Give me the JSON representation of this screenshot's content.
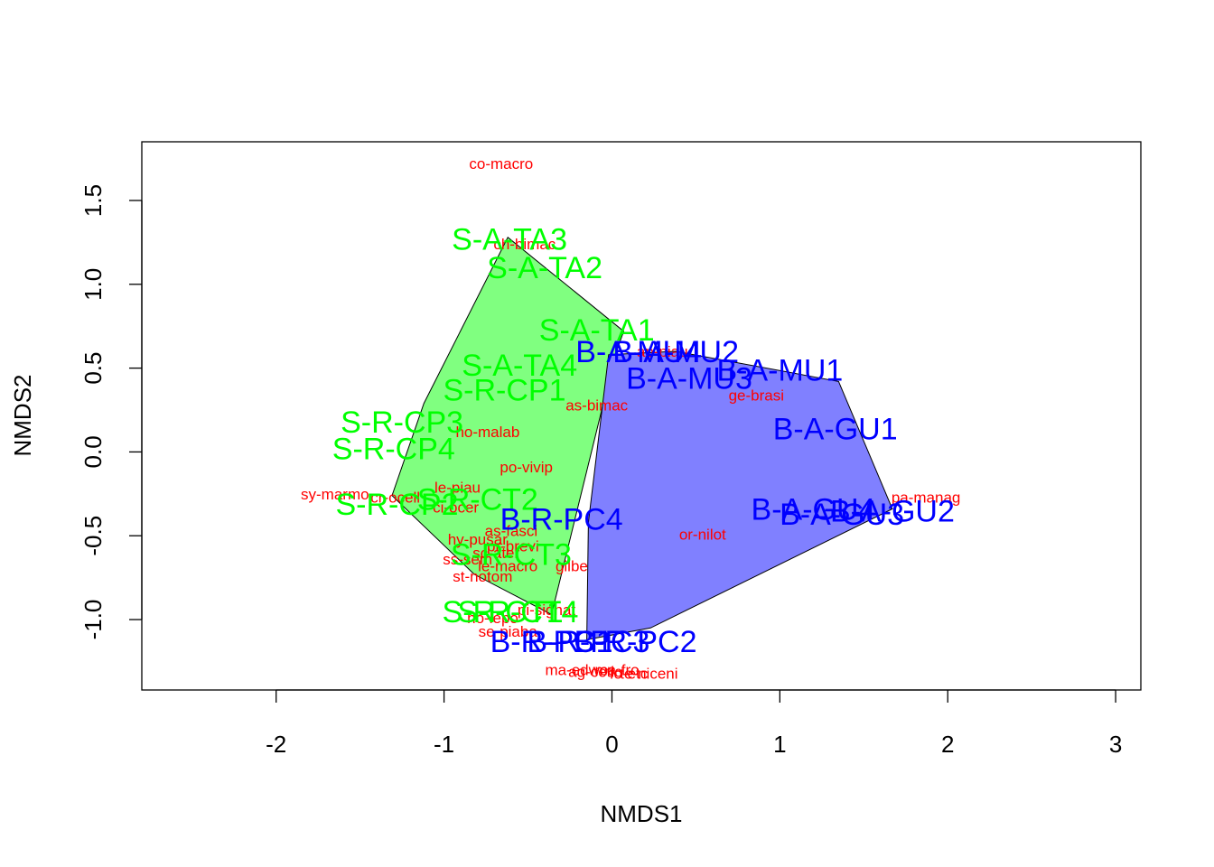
{
  "chart_data": {
    "type": "scatter",
    "title": "",
    "xlabel": "NMDS1",
    "ylabel": "NMDS2",
    "xlim": [
      -2.8,
      3.15
    ],
    "ylim": [
      -1.42,
      1.85
    ],
    "x_ticks": [
      -2,
      -1,
      0,
      1,
      2,
      3
    ],
    "y_ticks": [
      -1.0,
      -0.5,
      0.0,
      0.5,
      1.0,
      1.5
    ],
    "x_tick_labels": [
      "-2",
      "-1",
      "0",
      "1",
      "2",
      "3"
    ],
    "y_tick_labels": [
      "-1.0",
      "-0.5",
      "0.0",
      "0.5",
      "1.0",
      "1.5"
    ],
    "grid": false,
    "legend": "none",
    "colors": {
      "species": "#ff0000",
      "S": "#00ff00",
      "B": "#0000ff",
      "hull_S": "#80ff80",
      "hull_B": "#8080ff"
    },
    "hulls": [
      {
        "group": "S",
        "points": [
          [
            -0.62,
            1.28
          ],
          [
            0.07,
            0.72
          ],
          [
            0.02,
            0.58
          ],
          [
            -0.36,
            -0.97
          ],
          [
            -0.82,
            -0.73
          ],
          [
            -1.31,
            -0.26
          ],
          [
            -1.12,
            0.29
          ]
        ]
      },
      {
        "group": "B",
        "points": [
          [
            -0.02,
            0.58
          ],
          [
            0.38,
            0.6
          ],
          [
            1.35,
            0.42
          ],
          [
            1.67,
            -0.34
          ],
          [
            0.23,
            -1.05
          ],
          [
            -0.15,
            -1.12
          ],
          [
            -0.14,
            -0.42
          ]
        ]
      }
    ],
    "species": [
      {
        "label": "co-macro",
        "x": -0.66,
        "y": 1.72
      },
      {
        "label": "ch-bimac",
        "x": -0.52,
        "y": 1.24
      },
      {
        "label": "as-bimac",
        "x": -0.09,
        "y": 0.28
      },
      {
        "label": "ho-malab",
        "x": -0.74,
        "y": 0.12
      },
      {
        "label": "po-vivip",
        "x": -0.51,
        "y": -0.09
      },
      {
        "label": "le-piau",
        "x": -0.92,
        "y": -0.21
      },
      {
        "label": "sy-marmo",
        "x": -1.65,
        "y": -0.25
      },
      {
        "label": "cr-ocell",
        "x": -1.29,
        "y": -0.27
      },
      {
        "label": "ci-ocer",
        "x": -0.93,
        "y": -0.33
      },
      {
        "label": "as-fasci",
        "x": -0.6,
        "y": -0.47
      },
      {
        "label": "hy-pusar",
        "x": -0.8,
        "y": -0.52
      },
      {
        "label": "pr-brevi",
        "x": -0.59,
        "y": -0.56
      },
      {
        "label": "sc-ater",
        "x": -0.69,
        "y": -0.6
      },
      {
        "label": "ss-sem",
        "x": -0.86,
        "y": -0.64
      },
      {
        "label": "le-macro",
        "x": -0.62,
        "y": -0.68
      },
      {
        "label": "gilbe",
        "x": -0.24,
        "y": -0.68
      },
      {
        "label": "st-notom",
        "x": -0.77,
        "y": -0.74
      },
      {
        "label": "pi-signat",
        "x": -0.39,
        "y": -0.94
      },
      {
        "label": "ho-lepo",
        "x": -0.71,
        "y": -0.99
      },
      {
        "label": "se-piaba",
        "x": -0.62,
        "y": -1.07
      },
      {
        "label": "ge-brasi",
        "x": 0.86,
        "y": 0.34
      },
      {
        "label": "or-nilot",
        "x": 0.54,
        "y": -0.49
      },
      {
        "label": "pa-manag",
        "x": 1.87,
        "y": -0.27
      },
      {
        "label": "ap-piau",
        "x": 0.3,
        "y": 0.6
      },
      {
        "label": "ma-edwo",
        "x": -0.21,
        "y": -1.3
      },
      {
        "label": "ag-cetic",
        "x": -0.1,
        "y": -1.31
      },
      {
        "label": "ma-fro",
        "x": 0.03,
        "y": -1.3
      },
      {
        "label": "fo-etc",
        "x": 0.1,
        "y": -1.32
      },
      {
        "label": "te-niceni",
        "x": 0.22,
        "y": -1.32
      }
    ],
    "sites": [
      {
        "label": "S-A-TA3",
        "group": "S",
        "x": -0.61,
        "y": 1.27
      },
      {
        "label": "S-A-TA2",
        "group": "S",
        "x": -0.4,
        "y": 1.1
      },
      {
        "label": "S-A-TA1",
        "group": "S",
        "x": -0.09,
        "y": 0.73
      },
      {
        "label": "S-A-TA4",
        "group": "S",
        "x": -0.55,
        "y": 0.52
      },
      {
        "label": "S-R-CP1",
        "group": "S",
        "x": -0.64,
        "y": 0.37
      },
      {
        "label": "S-R-CP3",
        "group": "S",
        "x": -1.25,
        "y": 0.18
      },
      {
        "label": "S-R-CP4",
        "group": "S",
        "x": -1.3,
        "y": 0.02
      },
      {
        "label": "S-R-CP2",
        "group": "S",
        "x": -1.28,
        "y": -0.31
      },
      {
        "label": "S-R-CT2",
        "group": "S",
        "x": -0.8,
        "y": -0.28
      },
      {
        "label": "S-R-CT3",
        "group": "S",
        "x": -0.6,
        "y": -0.61
      },
      {
        "label": "S-R-CT1",
        "group": "S",
        "x": -0.65,
        "y": -0.95
      },
      {
        "label": "S-R-CT4",
        "group": "S",
        "x": -0.56,
        "y": -0.95
      },
      {
        "label": "B-A-MU4",
        "group": "B",
        "x": 0.16,
        "y": 0.6
      },
      {
        "label": "B-A-MU2",
        "group": "B",
        "x": 0.38,
        "y": 0.6
      },
      {
        "label": "B-A-MU3",
        "group": "B",
        "x": 0.46,
        "y": 0.44
      },
      {
        "label": "B-A-MU1",
        "group": "B",
        "x": 1.0,
        "y": 0.49
      },
      {
        "label": "B-A-GU1",
        "group": "B",
        "x": 1.33,
        "y": 0.14
      },
      {
        "label": "B-A-GU4",
        "group": "B",
        "x": 1.2,
        "y": -0.34
      },
      {
        "label": "B-A-GU3",
        "group": "B",
        "x": 1.37,
        "y": -0.37
      },
      {
        "label": "B-A-GU2",
        "group": "B",
        "x": 1.67,
        "y": -0.35
      },
      {
        "label": "B-R-PC4",
        "group": "B",
        "x": -0.3,
        "y": -0.4
      },
      {
        "label": "B-R-PC1",
        "group": "B",
        "x": -0.36,
        "y": -1.13
      },
      {
        "label": "B-R-PC3",
        "group": "B",
        "x": -0.14,
        "y": -1.13
      },
      {
        "label": "B-R-PC2",
        "group": "B",
        "x": 0.14,
        "y": -1.13
      }
    ]
  }
}
